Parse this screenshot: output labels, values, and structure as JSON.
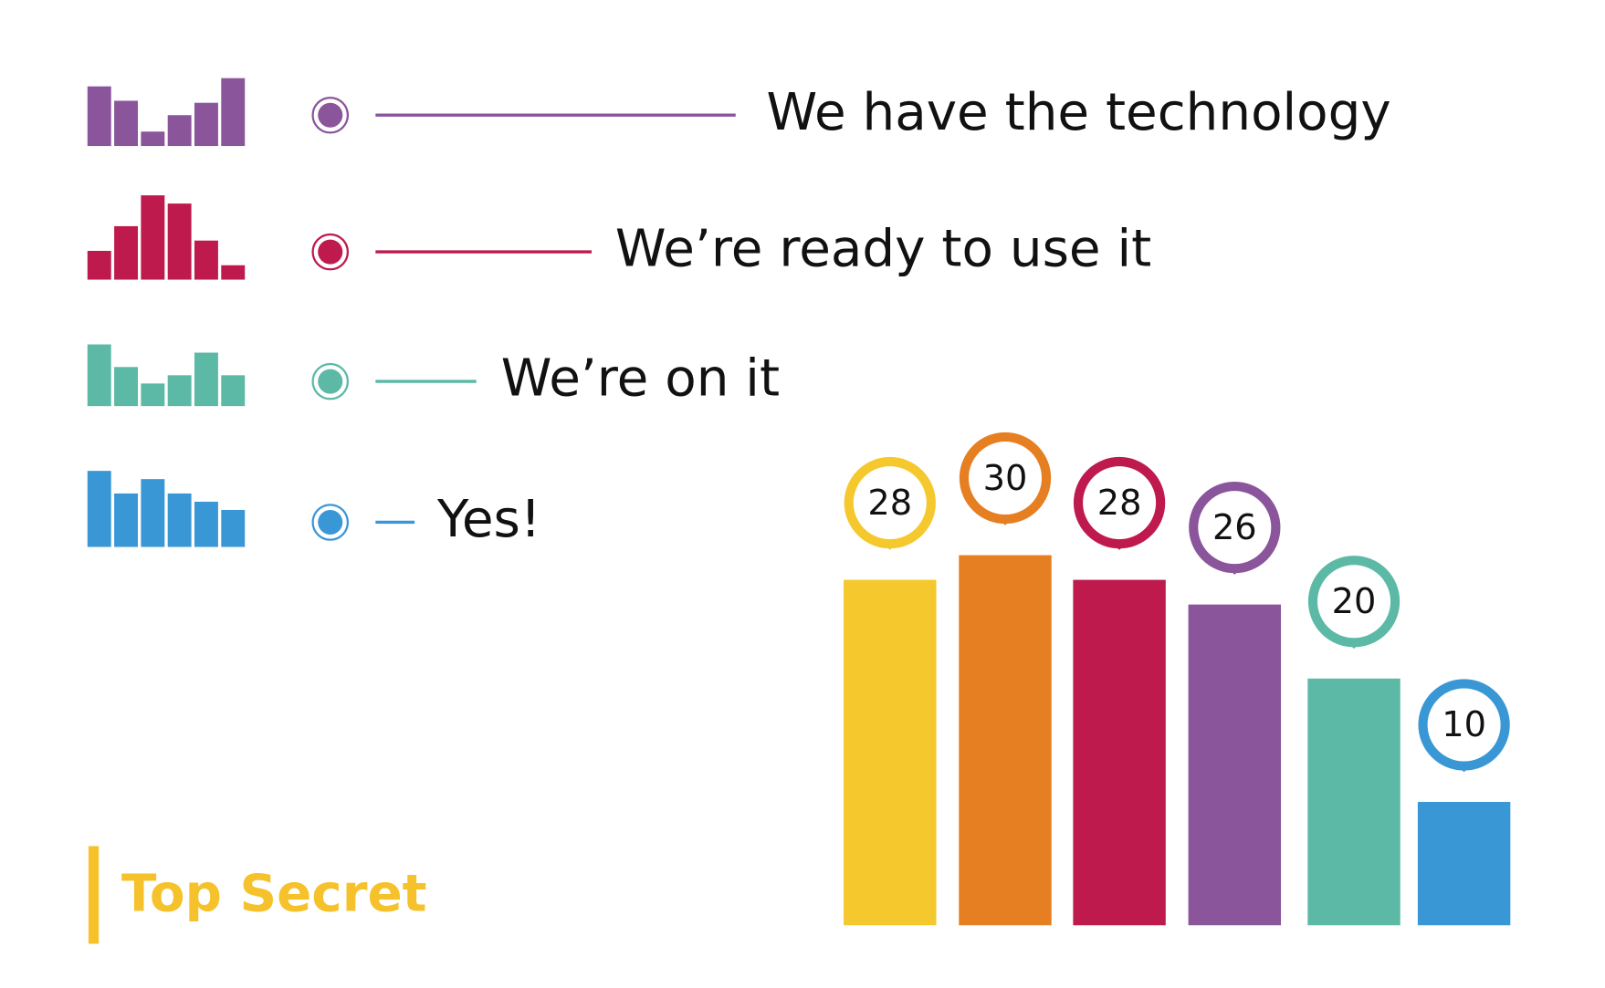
{
  "chart_data": {
    "type": "bar",
    "categories": [
      null,
      null,
      null,
      null,
      null,
      null
    ],
    "values": [
      28,
      30,
      28,
      26,
      20,
      10
    ],
    "colors": [
      "#f5c82e",
      "#e67e22",
      "#be1a4d",
      "#8a559b",
      "#5cb9a5",
      "#3a97d5"
    ],
    "ylim": [
      0,
      30
    ]
  },
  "statements": [
    {
      "text": "We have the technology",
      "color": "#8a559b"
    },
    {
      "text": "We’re ready to use it",
      "color": "#be1a4d"
    },
    {
      "text": "We’re on it",
      "color": "#5cb9a5"
    },
    {
      "text": "Yes!",
      "color": "#3a97d5"
    }
  ],
  "badge": {
    "text": "Top Secret",
    "color": "#f5c22b"
  }
}
